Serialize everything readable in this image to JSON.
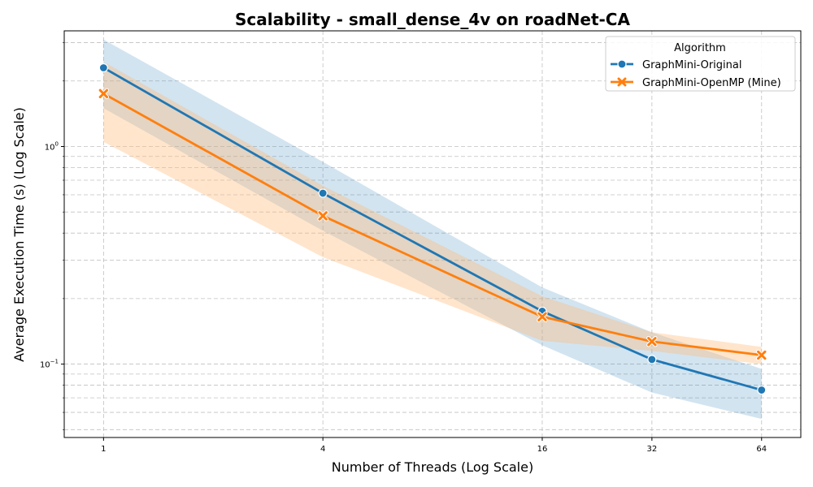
{
  "chart_data": {
    "type": "line",
    "title": "Scalability - small_dense_4v on roadNet-CA",
    "xlabel": "Number of Threads (Log Scale)",
    "ylabel": "Average Execution Time (s) (Log Scale)",
    "x_scale": "log2",
    "y_scale": "log10",
    "x": [
      1,
      4,
      16,
      32,
      64
    ],
    "x_tick_labels": [
      "1",
      "4",
      "16",
      "32",
      "64"
    ],
    "y_major_ticks": [
      {
        "value": 0.1,
        "base": "10",
        "exp": "−1"
      },
      {
        "value": 1,
        "base": "10",
        "exp": "0"
      }
    ],
    "ylim": [
      0.046,
      3.4
    ],
    "xlim": [
      0.78,
      82
    ],
    "grid": true,
    "legend": {
      "title": "Algorithm",
      "placement": "top-right"
    },
    "series": [
      {
        "name": "GraphMini-Original",
        "color": "#1f77b4",
        "band_color": "#1f77b4",
        "marker": "circle",
        "values": [
          2.3,
          0.61,
          0.175,
          0.105,
          0.076
        ],
        "ci_low": [
          1.5,
          0.41,
          0.122,
          0.074,
          0.056
        ],
        "ci_high": [
          3.1,
          0.85,
          0.225,
          0.14,
          0.095
        ]
      },
      {
        "name": "GraphMini-OpenMP (Mine)",
        "color": "#ff7f0e",
        "band_color": "#ffbb78",
        "marker": "x",
        "values": [
          1.75,
          0.48,
          0.165,
          0.127,
          0.11
        ],
        "ci_low": [
          1.05,
          0.31,
          0.128,
          0.115,
          0.1
        ],
        "ci_high": [
          2.45,
          0.66,
          0.205,
          0.14,
          0.12
        ]
      }
    ]
  }
}
